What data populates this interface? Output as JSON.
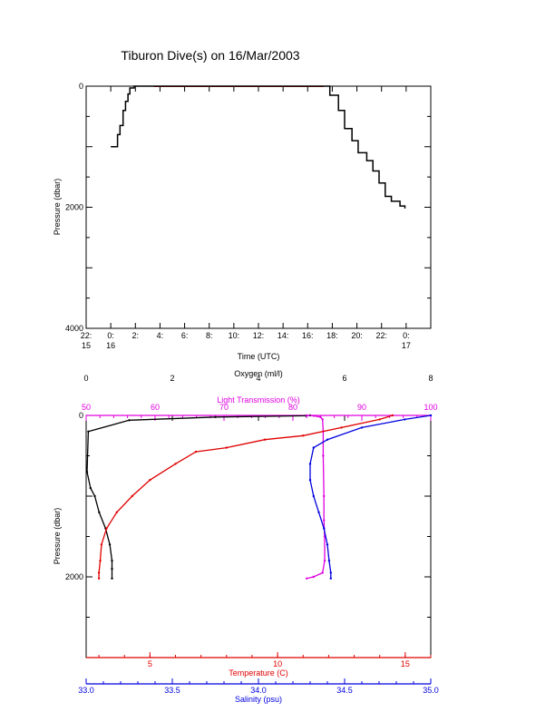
{
  "title": "Tiburon Dive(s) on 16/Mar/2003",
  "colors": {
    "axis": "#000000",
    "pressure_trace": "#000000",
    "oxygen": "#000000",
    "light_transmission": "#e000e0",
    "temperature": "#e00000",
    "salinity": "#0000e0"
  },
  "chart_data": [
    {
      "type": "line",
      "title": "Tiburon Dive(s) on 16/Mar/2003",
      "xlabel": "Time (UTC)",
      "ylabel": "Pressure (dbar)",
      "x_ticks": [
        {
          "hour": 22.0,
          "label": "22:",
          "sub": "15"
        },
        {
          "hour": 24.0,
          "label": "0:",
          "sub": "16"
        },
        {
          "hour": 26.0,
          "label": "2:",
          "sub": ""
        },
        {
          "hour": 28.0,
          "label": "4:",
          "sub": ""
        },
        {
          "hour": 30.0,
          "label": "6:",
          "sub": ""
        },
        {
          "hour": 32.0,
          "label": "8:",
          "sub": ""
        },
        {
          "hour": 34.0,
          "label": "10:",
          "sub": ""
        },
        {
          "hour": 36.0,
          "label": "12:",
          "sub": ""
        },
        {
          "hour": 38.0,
          "label": "14:",
          "sub": ""
        },
        {
          "hour": 40.0,
          "label": "16:",
          "sub": ""
        },
        {
          "hour": 42.0,
          "label": "18:",
          "sub": ""
        },
        {
          "hour": 44.0,
          "label": "20:",
          "sub": ""
        },
        {
          "hour": 46.0,
          "label": "22:",
          "sub": ""
        },
        {
          "hour": 48.0,
          "label": "0:",
          "sub": "17"
        }
      ],
      "xlim_hours": [
        22.0,
        50.0
      ],
      "y_ticks": [
        0,
        2000,
        4000
      ],
      "ylim": [
        4000,
        0
      ],
      "series": [
        {
          "x_hours": [
            24.0,
            24.5,
            24.55,
            24.75,
            25.0,
            25.2,
            25.4,
            25.55,
            25.9,
            26.5,
            27.3,
            27.5,
            28.0,
            30.0,
            35.0,
            40.0,
            41.3,
            41.8,
            42.5,
            43.0,
            43.6,
            44.1,
            44.8,
            45.3,
            45.8,
            46.3,
            46.8,
            47.5,
            47.9
          ],
          "pressure": [
            1000,
            1000,
            800,
            650,
            400,
            250,
            130,
            30,
            0,
            0,
            0,
            0,
            0,
            0,
            0,
            0,
            0,
            150,
            400,
            700,
            900,
            1100,
            1230,
            1400,
            1600,
            1820,
            1900,
            1980,
            2020
          ]
        }
      ]
    },
    {
      "type": "scatter",
      "ylabel": "Pressure (dbar)",
      "y_ticks": [
        0,
        2000
      ],
      "ylim": [
        3000,
        0
      ],
      "axes": {
        "oxygen": {
          "label": "Oxygen (ml/l)",
          "range": [
            0,
            8
          ],
          "ticks": [
            "0",
            "2",
            "4",
            "6",
            "8"
          ]
        },
        "light_transmission": {
          "label": "Light Transmission (%)",
          "range": [
            50,
            100
          ],
          "ticks": [
            "50",
            "60",
            "70",
            "80",
            "90",
            "100"
          ]
        },
        "temperature": {
          "label": "Temperature (C)",
          "range": [
            2.5,
            16
          ],
          "ticks": [
            "5",
            "10",
            "15"
          ]
        },
        "salinity": {
          "label": "Salinity (psu)",
          "range": [
            33.0,
            35.0
          ],
          "ticks": [
            "33.0",
            "33.5",
            "34.0",
            "34.5",
            "35.0"
          ]
        }
      },
      "series": [
        {
          "name": "Oxygen",
          "axis": "oxygen",
          "color": "#000000",
          "values": [
            5.2,
            5.1,
            3.0,
            1.0,
            0.05,
            0.02,
            0.1,
            0.2,
            0.3,
            0.45,
            0.55,
            0.6,
            0.6,
            0.6
          ],
          "pressure": [
            0,
            5,
            20,
            60,
            200,
            700,
            900,
            1000,
            1200,
            1400,
            1600,
            1800,
            1900,
            2020
          ]
        },
        {
          "name": "Light Transmission",
          "axis": "light_transmission",
          "color": "#e000e0",
          "values": [
            82.0,
            83.0,
            84.0,
            84.3,
            84.4,
            84.4,
            84.5,
            84.5,
            84.6,
            84.6,
            84.3,
            83.0,
            82.0
          ],
          "pressure": [
            0,
            5,
            20,
            50,
            200,
            500,
            1000,
            1300,
            1500,
            1800,
            1950,
            2000,
            2020
          ]
        },
        {
          "name": "Temperature",
          "axis": "temperature",
          "color": "#e00000",
          "values": [
            14.5,
            14.0,
            12.5,
            11.0,
            9.5,
            8.0,
            6.8,
            6.0,
            5.0,
            4.3,
            3.7,
            3.3,
            3.1,
            3.05,
            3.0,
            3.0
          ],
          "pressure": [
            0,
            50,
            150,
            250,
            300,
            400,
            450,
            600,
            800,
            1000,
            1200,
            1400,
            1600,
            1800,
            1950,
            2020
          ]
        },
        {
          "name": "Salinity",
          "axis": "salinity",
          "color": "#0000e0",
          "values": [
            35.0,
            34.85,
            34.6,
            34.4,
            34.32,
            34.3,
            34.3,
            34.32,
            34.35,
            34.38,
            34.4,
            34.41,
            34.42,
            34.42
          ],
          "pressure": [
            0,
            50,
            150,
            300,
            400,
            600,
            800,
            1000,
            1200,
            1400,
            1600,
            1800,
            1950,
            2020
          ]
        }
      ]
    }
  ]
}
